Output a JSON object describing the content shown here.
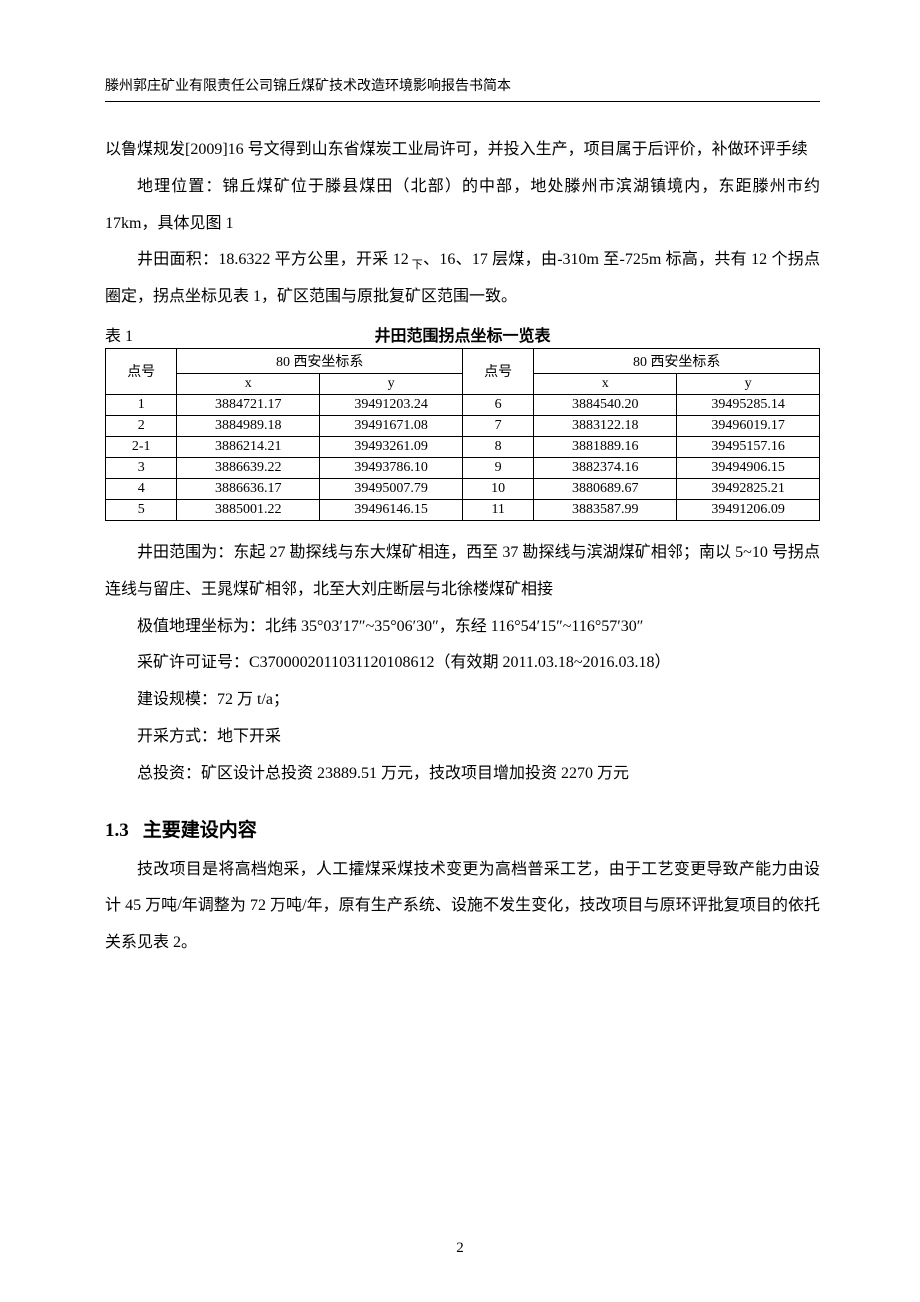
{
  "header": "滕州郭庄矿业有限责任公司锦丘煤矿技术改造环境影响报告书简本",
  "para1": "以鲁煤规发[2009]16 号文得到山东省煤炭工业局许可，并投入生产，项目属于后评价，补做环评手续",
  "para2": "地理位置：锦丘煤矿位于滕县煤田（北部）的中部，地处滕州市滨湖镇境内，东距滕州市约 17km，具体见图 1",
  "para3_a": "井田面积：18.6322 平方公里，开采 12",
  "para3_sub": " 下",
  "para3_b": "、16、17 层煤，由-310m 至-725m 标高，共有 12 个拐点圈定，拐点坐标见表 1，矿区范围与原批复矿区范围一致。",
  "table1": {
    "label": "表 1",
    "title": "井田范围拐点坐标一览表",
    "group_header": "80 西安坐标系",
    "pt_label": "点号",
    "x_label": "x",
    "y_label": "y",
    "left_rows": [
      [
        "1",
        "3884721.17",
        "39491203.24"
      ],
      [
        "2",
        "3884989.18",
        "39491671.08"
      ],
      [
        "2-1",
        "3886214.21",
        "39493261.09"
      ],
      [
        "3",
        "3886639.22",
        "39493786.10"
      ],
      [
        "4",
        "3886636.17",
        "39495007.79"
      ],
      [
        "5",
        "3885001.22",
        "39496146.15"
      ]
    ],
    "right_rows": [
      [
        "6",
        "3884540.20",
        "39495285.14"
      ],
      [
        "7",
        "3883122.18",
        "39496019.17"
      ],
      [
        "8",
        "3881889.16",
        "39495157.16"
      ],
      [
        "9",
        "3882374.16",
        "39494906.15"
      ],
      [
        "10",
        "3880689.67",
        "39492825.21"
      ],
      [
        "11",
        "3883587.99",
        "39491206.09"
      ]
    ]
  },
  "para4": "井田范围为：东起 27 勘探线与东大煤矿相连，西至 37 勘探线与滨湖煤矿相邻；南以 5~10 号拐点连线与留庄、王晁煤矿相邻，北至大刘庄断层与北徐楼煤矿相接",
  "para5": "极值地理坐标为：北纬 35°03′17″~35°06′30″，东经 116°54′15″~116°57′30″",
  "para6": "采矿许可证号：C3700002011031120108612（有效期 2011.03.18~2016.03.18）",
  "para7": "建设规模：72 万 t/a；",
  "para8": "开采方式：地下开采",
  "para9": "总投资：矿区设计总投资 23889.51 万元，技改项目增加投资 2270 万元",
  "section": {
    "num": "1.3",
    "title": "主要建设内容"
  },
  "para10": "技改项目是将高档炮采，人工攉煤采煤技术变更为高档普采工艺，由于工艺变更导致产能力由设计 45 万吨/年调整为 72 万吨/年，原有生产系统、设施不发生变化，技改项目与原环评批复项目的依托关系见表 2。",
  "page_number": "2"
}
